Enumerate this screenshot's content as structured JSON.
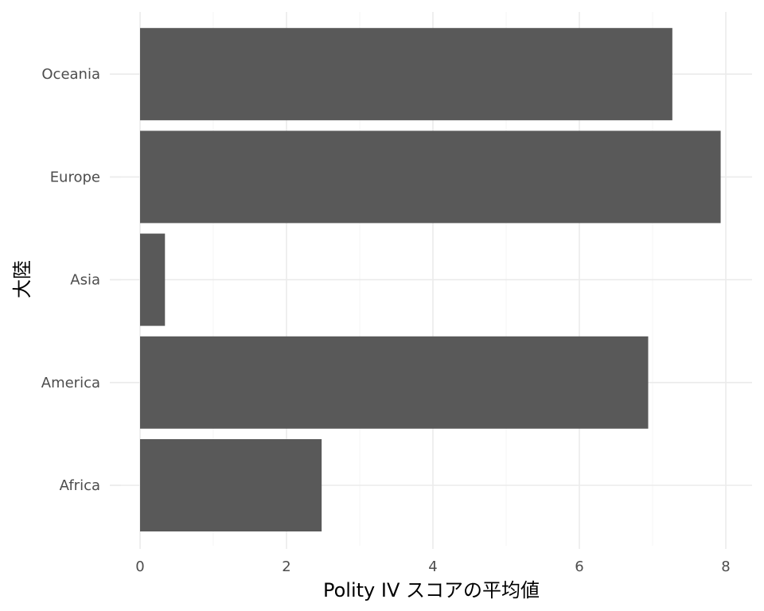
{
  "chart_data": {
    "type": "bar",
    "orientation": "horizontal",
    "categories": [
      "Africa",
      "America",
      "Asia",
      "Europe",
      "Oceania"
    ],
    "values": [
      2.48,
      6.94,
      0.34,
      7.93,
      7.27
    ],
    "xlabel": "Polity IV スコアの平均値",
    "ylabel": "大陸",
    "xlim": [
      0,
      8.3
    ],
    "x_ticks": [
      0,
      2,
      4,
      6,
      8
    ],
    "grid": true,
    "bar_color": "#595959",
    "theme": "minimal"
  }
}
